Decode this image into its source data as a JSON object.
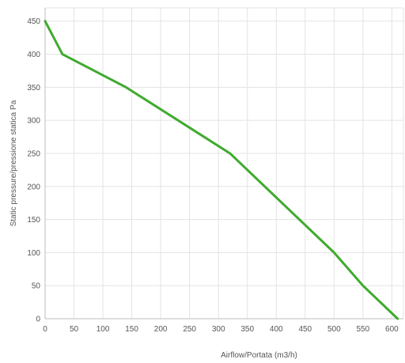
{
  "chart_data": {
    "type": "line",
    "title": "",
    "xlabel": "Airflow/Portata (m3/h)",
    "ylabel": "Static pressure/pressione statica Pa",
    "xlim": [
      0,
      620
    ],
    "ylim": [
      0,
      470
    ],
    "x_ticks": [
      0,
      50,
      100,
      150,
      200,
      250,
      300,
      350,
      400,
      450,
      500,
      550,
      600
    ],
    "y_ticks": [
      0,
      50,
      100,
      150,
      200,
      250,
      300,
      350,
      400,
      450
    ],
    "grid": true,
    "legend": "none",
    "series": [
      {
        "color": "#3faa2e",
        "x": [
          0,
          30,
          140,
          320,
          500,
          550,
          610
        ],
        "y": [
          450,
          400,
          350,
          250,
          100,
          50,
          0
        ]
      }
    ]
  }
}
